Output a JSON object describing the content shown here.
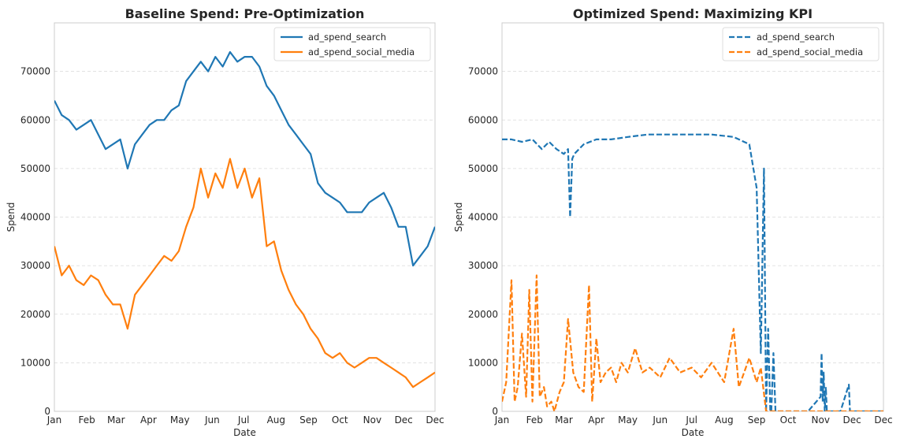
{
  "chart_data": [
    {
      "type": "line",
      "title": "Baseline Spend: Pre-Optimization",
      "xlabel": "Date",
      "ylabel": "Spend",
      "x_ticks": [
        "Jan",
        "Feb",
        "Mar",
        "Apr",
        "May",
        "Jun",
        "Jul",
        "Aug",
        "Sep",
        "Oct",
        "Nov",
        "Dec",
        "Dec"
      ],
      "y_ticks": [
        0,
        10000,
        20000,
        30000,
        40000,
        50000,
        60000,
        70000
      ],
      "xlim": [
        "2023-01-01",
        "2023-12-31"
      ],
      "ylim": [
        0,
        80000
      ],
      "grid": "horizontal dashed",
      "legend_position": "top-right",
      "series": [
        {
          "name": "ad_spend_search",
          "style": "solid",
          "color": "#1f77b4",
          "x": [
            "2023-01-01",
            "2023-01-08",
            "2023-01-15",
            "2023-01-22",
            "2023-01-29",
            "2023-02-05",
            "2023-02-12",
            "2023-02-19",
            "2023-02-26",
            "2023-03-05",
            "2023-03-12",
            "2023-03-19",
            "2023-03-26",
            "2023-04-02",
            "2023-04-09",
            "2023-04-16",
            "2023-04-23",
            "2023-04-30",
            "2023-05-07",
            "2023-05-14",
            "2023-05-21",
            "2023-05-28",
            "2023-06-04",
            "2023-06-11",
            "2023-06-18",
            "2023-06-25",
            "2023-07-02",
            "2023-07-09",
            "2023-07-16",
            "2023-07-23",
            "2023-07-30",
            "2023-08-06",
            "2023-08-13",
            "2023-08-20",
            "2023-08-27",
            "2023-09-03",
            "2023-09-10",
            "2023-09-17",
            "2023-09-24",
            "2023-10-01",
            "2023-10-08",
            "2023-10-15",
            "2023-10-22",
            "2023-10-29",
            "2023-11-05",
            "2023-11-12",
            "2023-11-19",
            "2023-11-26",
            "2023-12-03",
            "2023-12-10",
            "2023-12-17",
            "2023-12-24",
            "2023-12-31"
          ],
          "y": [
            64000,
            61000,
            60000,
            58000,
            59000,
            60000,
            57000,
            54000,
            55000,
            56000,
            50000,
            55000,
            57000,
            59000,
            60000,
            60000,
            62000,
            63000,
            68000,
            70000,
            72000,
            70000,
            73000,
            71000,
            74000,
            72000,
            73000,
            73000,
            71000,
            67000,
            65000,
            62000,
            59000,
            57000,
            55000,
            53000,
            47000,
            45000,
            44000,
            43000,
            41000,
            41000,
            41000,
            43000,
            44000,
            45000,
            42000,
            38000,
            38000,
            30000,
            32000,
            34000,
            38000
          ]
        },
        {
          "name": "ad_spend_social_media",
          "style": "solid",
          "color": "#ff7f0e",
          "x": [
            "2023-01-01",
            "2023-01-08",
            "2023-01-15",
            "2023-01-22",
            "2023-01-29",
            "2023-02-05",
            "2023-02-12",
            "2023-02-19",
            "2023-02-26",
            "2023-03-05",
            "2023-03-12",
            "2023-03-19",
            "2023-03-26",
            "2023-04-02",
            "2023-04-09",
            "2023-04-16",
            "2023-04-23",
            "2023-04-30",
            "2023-05-07",
            "2023-05-14",
            "2023-05-21",
            "2023-05-28",
            "2023-06-04",
            "2023-06-11",
            "2023-06-18",
            "2023-06-25",
            "2023-07-02",
            "2023-07-09",
            "2023-07-16",
            "2023-07-23",
            "2023-07-30",
            "2023-08-06",
            "2023-08-13",
            "2023-08-20",
            "2023-08-27",
            "2023-09-03",
            "2023-09-10",
            "2023-09-17",
            "2023-09-24",
            "2023-10-01",
            "2023-10-08",
            "2023-10-15",
            "2023-10-22",
            "2023-10-29",
            "2023-11-05",
            "2023-11-12",
            "2023-11-19",
            "2023-11-26",
            "2023-12-03",
            "2023-12-10",
            "2023-12-17",
            "2023-12-24",
            "2023-12-31"
          ],
          "y": [
            34000,
            28000,
            30000,
            27000,
            26000,
            28000,
            27000,
            24000,
            22000,
            22000,
            17000,
            24000,
            26000,
            28000,
            30000,
            32000,
            31000,
            33000,
            38000,
            42000,
            50000,
            44000,
            49000,
            46000,
            52000,
            46000,
            50000,
            44000,
            48000,
            34000,
            35000,
            29000,
            25000,
            22000,
            20000,
            17000,
            15000,
            12000,
            11000,
            12000,
            10000,
            9000,
            10000,
            11000,
            11000,
            10000,
            9000,
            8000,
            7000,
            5000,
            6000,
            7000,
            8000
          ]
        }
      ]
    },
    {
      "type": "line",
      "title": "Optimized Spend: Maximizing KPI",
      "xlabel": "Date",
      "ylabel": "Spend",
      "x_ticks": [
        "Jan",
        "Feb",
        "Mar",
        "Apr",
        "May",
        "Jun",
        "Jul",
        "Aug",
        "Sep",
        "Oct",
        "Nov",
        "Dec",
        "Dec"
      ],
      "y_ticks": [
        0,
        10000,
        20000,
        30000,
        40000,
        50000,
        60000,
        70000
      ],
      "xlim": [
        "2023-01-01",
        "2023-12-31"
      ],
      "ylim": [
        0,
        80000
      ],
      "grid": "horizontal dashed",
      "legend_position": "top-right",
      "series": [
        {
          "name": "ad_spend_search",
          "style": "dashed",
          "color": "#1f77b4",
          "x": [
            "2023-01-01",
            "2023-01-10",
            "2023-01-20",
            "2023-01-30",
            "2023-02-08",
            "2023-02-15",
            "2023-02-22",
            "2023-03-01",
            "2023-03-05",
            "2023-03-07",
            "2023-03-09",
            "2023-03-11",
            "2023-03-20",
            "2023-04-01",
            "2023-04-15",
            "2023-05-01",
            "2023-05-20",
            "2023-06-10",
            "2023-07-01",
            "2023-07-20",
            "2023-08-10",
            "2023-08-25",
            "2023-09-01",
            "2023-09-05",
            "2023-09-08",
            "2023-09-10",
            "2023-09-12",
            "2023-09-14",
            "2023-09-15",
            "2023-09-17",
            "2023-09-19",
            "2023-09-21",
            "2023-09-23",
            "2023-10-01",
            "2023-10-03",
            "2023-10-05",
            "2023-10-07",
            "2023-10-09",
            "2023-10-20",
            "2023-11-01",
            "2023-11-02",
            "2023-11-03",
            "2023-11-04",
            "2023-11-05",
            "2023-11-06",
            "2023-11-07",
            "2023-11-08",
            "2023-11-20",
            "2023-11-28",
            "2023-11-29",
            "2023-11-30",
            "2023-12-10",
            "2023-12-31"
          ],
          "y": [
            56000,
            56000,
            55500,
            56000,
            54000,
            55500,
            54000,
            53000,
            54000,
            40000,
            52000,
            53000,
            55000,
            56000,
            56000,
            56500,
            57000,
            57000,
            57000,
            57000,
            56500,
            55000,
            46000,
            12000,
            50000,
            0,
            17000,
            0,
            0,
            12000,
            0,
            0,
            0,
            0,
            0,
            0,
            0,
            0,
            0,
            3000,
            12000,
            2000,
            8000,
            0,
            5000,
            0,
            0,
            0,
            5500,
            0,
            0,
            0,
            0
          ]
        },
        {
          "name": "ad_spend_social_media",
          "style": "dashed",
          "color": "#ff7f0e",
          "x": [
            "2023-01-01",
            "2023-01-05",
            "2023-01-10",
            "2023-01-13",
            "2023-01-16",
            "2023-01-20",
            "2023-01-24",
            "2023-01-27",
            "2023-01-30",
            "2023-02-03",
            "2023-02-06",
            "2023-02-10",
            "2023-02-13",
            "2023-02-17",
            "2023-02-20",
            "2023-02-25",
            "2023-03-01",
            "2023-03-05",
            "2023-03-10",
            "2023-03-15",
            "2023-03-20",
            "2023-03-25",
            "2023-03-28",
            "2023-04-01",
            "2023-04-05",
            "2023-04-10",
            "2023-04-15",
            "2023-04-20",
            "2023-04-25",
            "2023-05-01",
            "2023-05-08",
            "2023-05-15",
            "2023-05-22",
            "2023-06-01",
            "2023-06-10",
            "2023-06-20",
            "2023-07-01",
            "2023-07-10",
            "2023-07-20",
            "2023-08-01",
            "2023-08-10",
            "2023-08-15",
            "2023-08-20",
            "2023-08-25",
            "2023-09-01",
            "2023-09-05",
            "2023-09-10",
            "2023-09-15",
            "2023-10-01",
            "2023-11-01",
            "2023-12-01",
            "2023-12-31"
          ],
          "y": [
            2000,
            6000,
            27000,
            2000,
            5000,
            16000,
            3000,
            25000,
            2000,
            28000,
            3000,
            5000,
            1000,
            2000,
            0,
            4000,
            6000,
            19000,
            8000,
            5000,
            4000,
            26000,
            2000,
            15000,
            6000,
            8000,
            9000,
            6000,
            10000,
            8000,
            13000,
            8000,
            9000,
            7000,
            11000,
            8000,
            9000,
            7000,
            10000,
            6000,
            17000,
            5000,
            8000,
            11000,
            6000,
            9000,
            0,
            0,
            0,
            0,
            0,
            0
          ]
        }
      ]
    }
  ]
}
